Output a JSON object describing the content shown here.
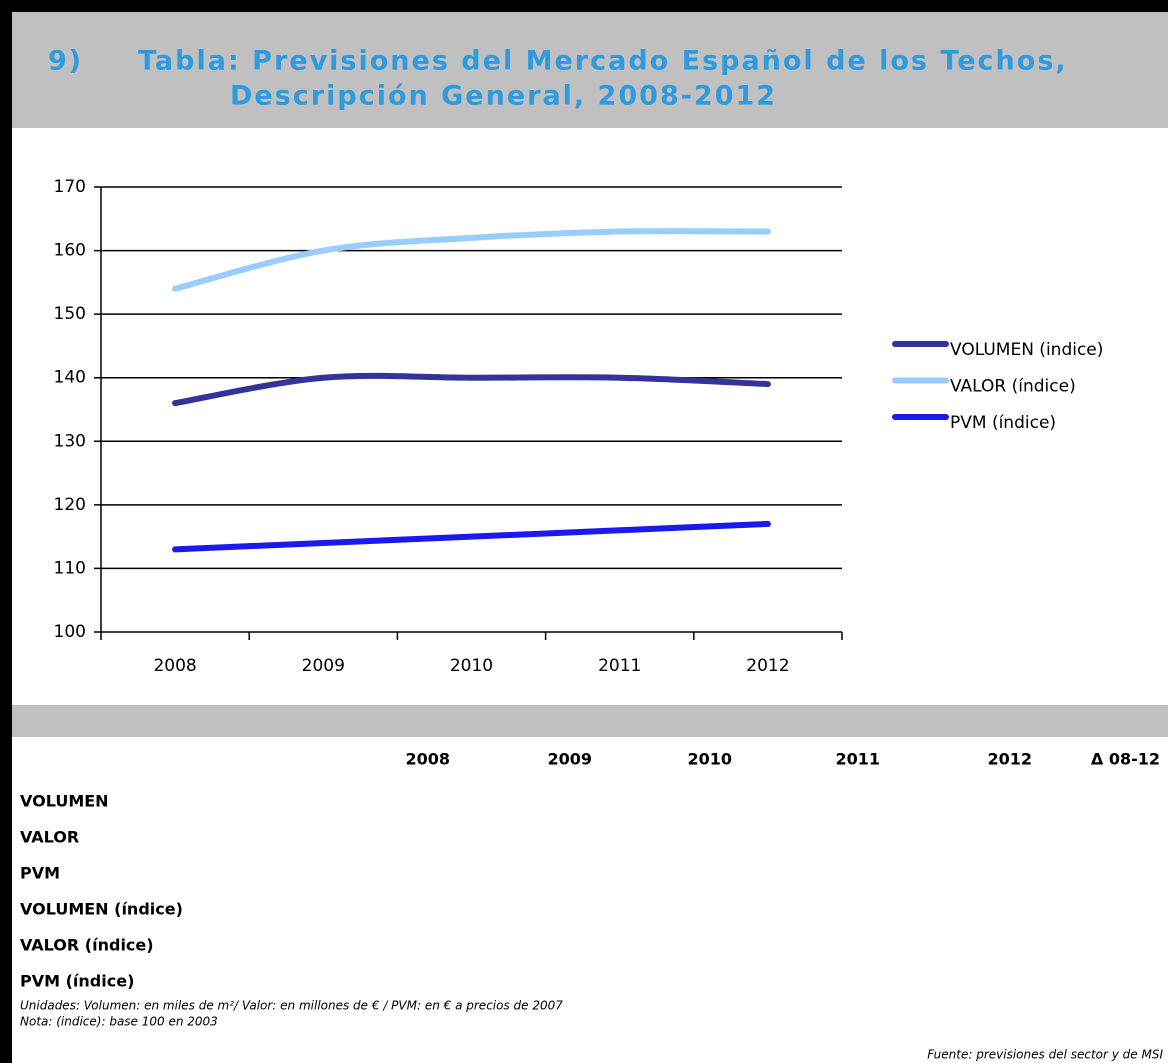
{
  "header": {
    "number": "9)",
    "title": [
      "Tabla: Previsiones del Mercado Español de los Techos,",
      "Descripción General, 2008-2012"
    ]
  },
  "chart_data": {
    "type": "line",
    "categories": [
      "2008",
      "2009",
      "2010",
      "2011",
      "2012"
    ],
    "series": [
      {
        "name": "VOLUMEN (indice)",
        "color": "#333399",
        "values": [
          136,
          140,
          140,
          140,
          139
        ]
      },
      {
        "name": "VALOR (índice)",
        "color": "#99ccff",
        "values": [
          154,
          160,
          162,
          163,
          163
        ]
      },
      {
        "name": "PVM (índice)",
        "color": "#1a1aee",
        "values": [
          113,
          114,
          115,
          116,
          117
        ]
      }
    ],
    "ylim": [
      100,
      170
    ],
    "yticks": [
      100,
      110,
      120,
      130,
      140,
      150,
      160,
      170
    ],
    "grid": true,
    "legend": "right"
  },
  "table": {
    "columns": [
      "2008",
      "2009",
      "2010",
      "2011",
      "2012",
      "Δ 08-12"
    ],
    "rows": [
      "VOLUMEN",
      "VALOR",
      "PVM",
      "VOLUMEN (índice)",
      "VALOR (índice)",
      "PVM (índice)"
    ]
  },
  "notes": [
    "Unidades: Volumen: en miles de m²/ Valor: en millones de € / PVM: en € a precios de 2007",
    "Nota: (indice): base 100 en 2003"
  ],
  "source": "Fuente: previsiones del sector y de MSI"
}
